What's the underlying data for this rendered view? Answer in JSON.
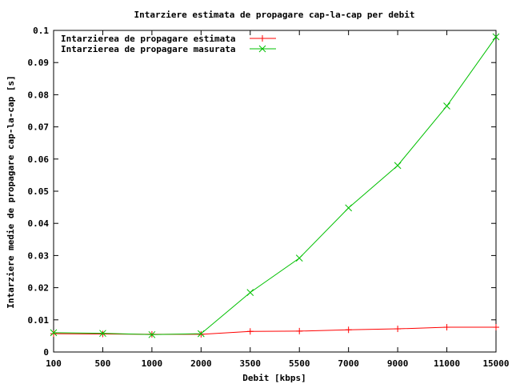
{
  "chart_data": {
    "type": "line",
    "title": "Intarziere estimata de propagare cap-la-cap per debit",
    "xlabel": "Debit [kbps]",
    "ylabel": "Intarziere medie de propagare cap-la-cap [s]",
    "categories": [
      "100",
      "500",
      "1000",
      "2000",
      "3500",
      "5500",
      "7000",
      "9000",
      "11000",
      "15000"
    ],
    "ylim": [
      0,
      0.1
    ],
    "yticks": [
      "0",
      "0.01",
      "0.02",
      "0.03",
      "0.04",
      "0.05",
      "0.06",
      "0.07",
      "0.08",
      "0.09",
      "0.1"
    ],
    "legend_position": "top-left",
    "grid": false,
    "series": [
      {
        "name": "Intarzierea de propagare estimata",
        "color": "#ff0000",
        "marker": "plus",
        "values": [
          0.0057,
          0.0056,
          0.0055,
          0.0055,
          0.0064,
          0.0065,
          0.0069,
          0.0072,
          0.0077,
          0.0077
        ]
      },
      {
        "name": "Intarzierea de propagare masurata",
        "color": "#00c000",
        "marker": "cross",
        "values": [
          0.006,
          0.0058,
          0.0054,
          0.0057,
          0.0185,
          0.0292,
          0.0448,
          0.058,
          0.0765,
          0.098
        ]
      }
    ]
  }
}
